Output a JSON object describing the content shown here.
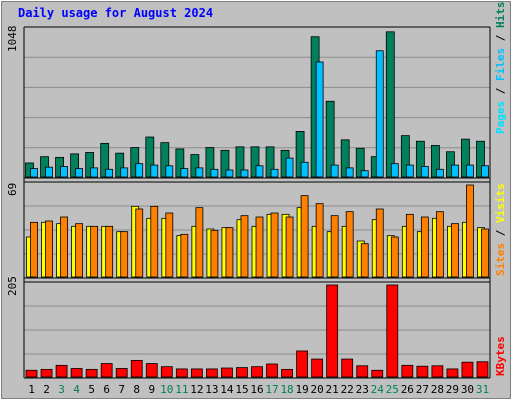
{
  "chart_data": {
    "type": "bar",
    "title": "Daily usage for August 2024",
    "x": [
      "1",
      "2",
      "3",
      "4",
      "5",
      "6",
      "7",
      "8",
      "9",
      "10",
      "11",
      "12",
      "13",
      "14",
      "15",
      "16",
      "17",
      "18",
      "19",
      "20",
      "21",
      "22",
      "23",
      "24",
      "25",
      "26",
      "27",
      "28",
      "29",
      "30",
      "31"
    ],
    "weekend_days": [
      "3",
      "4",
      "10",
      "11",
      "17",
      "18",
      "24",
      "25",
      "31"
    ],
    "panels": [
      {
        "id": "hits",
        "ymax_label": "1048",
        "ymax": 1048,
        "legend": [
          "Pages",
          "Files",
          "Hits"
        ],
        "series": [
          {
            "name": "Hits",
            "color": "#00805c",
            "values": [
              100,
              145,
              140,
              165,
              175,
              240,
              170,
              210,
              285,
              245,
              200,
              160,
              210,
              190,
              215,
              215,
              215,
              190,
              325,
              1000,
              540,
              265,
              205,
              145,
              1035,
              295,
              255,
              225,
              180,
              270,
              255
            ]
          },
          {
            "name": "Files",
            "color": "#00c0ff",
            "values": [
              60,
              70,
              75,
              60,
              65,
              55,
              65,
              95,
              85,
              80,
              60,
              65,
              55,
              50,
              50,
              80,
              55,
              135,
              105,
              820,
              85,
              65,
              45,
              900,
              95,
              85,
              75,
              55,
              85,
              85,
              80
            ]
          },
          {
            "name": "Pages",
            "color": "#00e0ff",
            "values": [
              55,
              62,
              68,
              55,
              58,
              50,
              58,
              85,
              78,
              72,
              55,
              58,
              50,
              45,
              45,
              72,
              50,
              125,
              95,
              0,
              78,
              58,
              40,
              0,
              85,
              78,
              68,
              50,
              78,
              78,
              72
            ]
          }
        ]
      },
      {
        "id": "visits",
        "ymax_label": "69",
        "ymax": 69,
        "legend": [
          "Sites",
          "Visits"
        ],
        "series": [
          {
            "name": "Visits",
            "color": "#ffff00",
            "values": [
              30,
              41,
              40,
              38,
              38,
              38,
              34,
              53,
              44,
              44,
              31,
              38,
              36,
              37,
              43,
              38,
              47,
              47,
              52,
              38,
              34,
              38,
              27,
              43,
              31,
              38,
              34,
              44,
              38,
              41,
              37
            ]
          },
          {
            "name": "Sites",
            "color": "#ff8000",
            "values": [
              41,
              42,
              45,
              40,
              38,
              38,
              34,
              51,
              53,
              48,
              32,
              52,
              35,
              37,
              46,
              45,
              48,
              45,
              61,
              55,
              46,
              49,
              25,
              51,
              30,
              47,
              45,
              49,
              40,
              69,
              36
            ]
          }
        ]
      },
      {
        "id": "kbytes",
        "ymax_label": "205",
        "ymax": 205,
        "legend": [
          "KBytes"
        ],
        "series": [
          {
            "name": "KBytes",
            "color": "#ff0000",
            "values": [
              15,
              17,
              26,
              19,
              17,
              30,
              19,
              37,
              30,
              23,
              18,
              18,
              18,
              20,
              21,
              23,
              29,
              17,
              58,
              40,
              205,
              40,
              25,
              15,
              205,
              26,
              24,
              25,
              18,
              33,
              34
            ]
          }
        ]
      }
    ]
  }
}
